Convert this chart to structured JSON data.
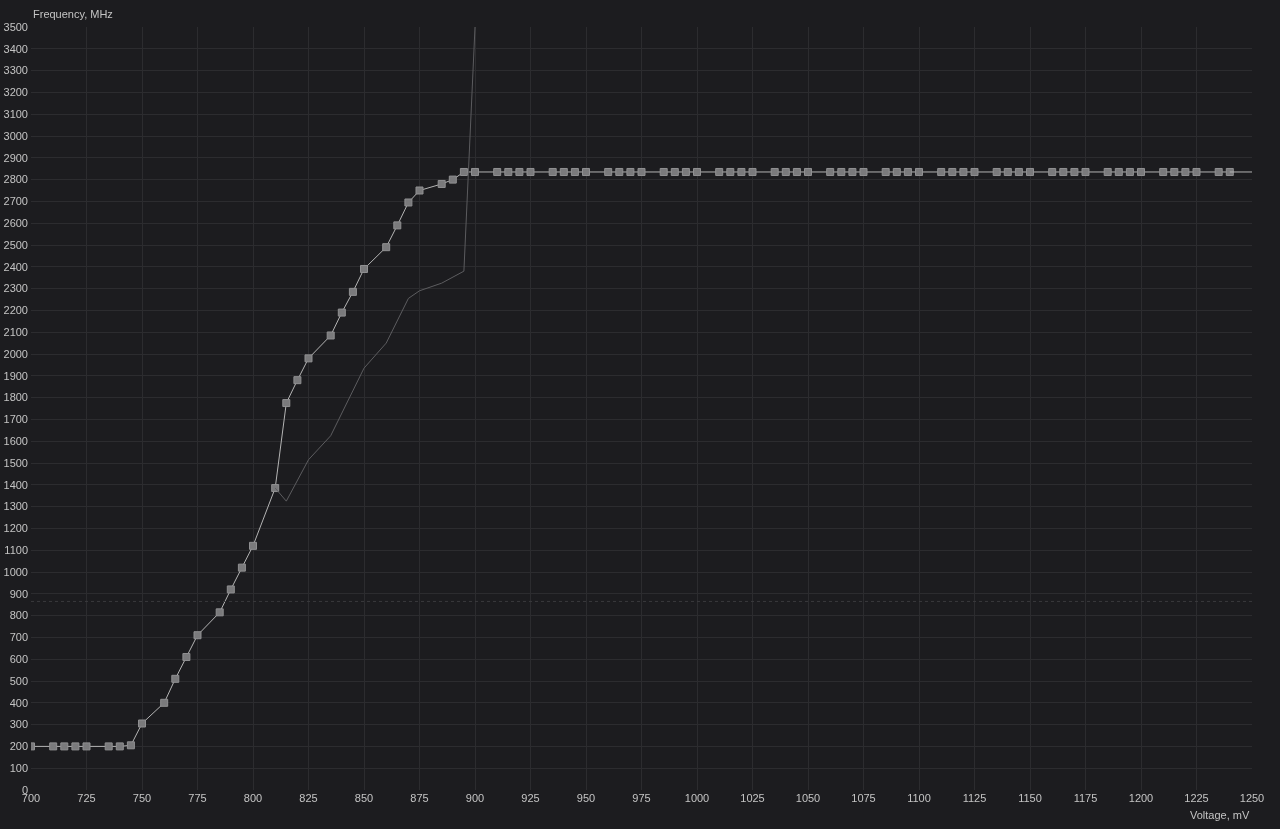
{
  "chart_data": {
    "type": "line",
    "xlabel": "Voltage, mV",
    "ylabel": "Frequency, MHz",
    "xlim": [
      700,
      1250
    ],
    "ylim": [
      0,
      3500
    ],
    "xticks": [
      700,
      725,
      750,
      775,
      800,
      825,
      850,
      875,
      900,
      925,
      950,
      975,
      1000,
      1025,
      1050,
      1075,
      1100,
      1125,
      1150,
      1175,
      1200,
      1225,
      1250
    ],
    "yticks": [
      0,
      100,
      200,
      300,
      400,
      500,
      600,
      700,
      800,
      900,
      1000,
      1100,
      1200,
      1300,
      1400,
      1500,
      1600,
      1700,
      1800,
      1900,
      2000,
      2100,
      2200,
      2300,
      2400,
      2500,
      2600,
      2700,
      2800,
      2900,
      3000,
      3100,
      3200,
      3300,
      3400,
      3500
    ],
    "grid": true,
    "ref_lines": [
      {
        "axis": "y",
        "value": 865,
        "color": "#3a3a3d",
        "line_style": "dotted"
      }
    ],
    "series": [
      {
        "color": "#b4b4b4",
        "marker": "square",
        "x": [
          700,
          710,
          715,
          720,
          725,
          735,
          740,
          745,
          750,
          760,
          765,
          770,
          775,
          785,
          790,
          795,
          800,
          810,
          815,
          820,
          825,
          835,
          840,
          845,
          850,
          860,
          865,
          870,
          875,
          885,
          890,
          895,
          900,
          910,
          915,
          920,
          925,
          935,
          940,
          945,
          950,
          960,
          965,
          970,
          975,
          985,
          990,
          995,
          1000,
          1010,
          1015,
          1020,
          1025,
          1035,
          1040,
          1045,
          1050,
          1060,
          1065,
          1070,
          1075,
          1085,
          1090,
          1095,
          1100,
          1110,
          1115,
          1120,
          1125,
          1135,
          1140,
          1145,
          1150,
          1160,
          1165,
          1170,
          1175,
          1185,
          1190,
          1195,
          1200,
          1210,
          1215,
          1220,
          1225,
          1235,
          1240
        ],
        "values": [
          200,
          200,
          200,
          200,
          200,
          200,
          200,
          205,
          305,
          400,
          510,
          610,
          710,
          815,
          920,
          1020,
          1120,
          1385,
          1775,
          1880,
          1980,
          2085,
          2190,
          2285,
          2390,
          2490,
          2590,
          2695,
          2750,
          2780,
          2800,
          2835,
          2835,
          2835,
          2835,
          2835,
          2835,
          2835,
          2835,
          2835,
          2835,
          2835,
          2835,
          2835,
          2835,
          2835,
          2835,
          2835,
          2835,
          2835,
          2835,
          2835,
          2835,
          2835,
          2835,
          2835,
          2835,
          2835,
          2835,
          2835,
          2835,
          2835,
          2835,
          2835,
          2835,
          2835,
          2835,
          2835,
          2835,
          2835,
          2835,
          2835,
          2835,
          2835,
          2835,
          2835,
          2835,
          2835,
          2835,
          2835,
          2835,
          2835,
          2835,
          2835,
          2835,
          2835,
          2835
        ]
      },
      {
        "color": "#b4b4b4",
        "marker": "none",
        "x": [
          1240,
          1250
        ],
        "values": [
          2835,
          2835
        ]
      },
      {
        "color": "#5c5c5f",
        "marker": "none",
        "x": [
          810,
          815,
          825,
          835,
          850,
          860,
          870,
          875,
          885,
          895,
          900
        ],
        "values": [
          1385,
          1325,
          1515,
          1625,
          1935,
          2050,
          2255,
          2290,
          2325,
          2380,
          3500
        ]
      }
    ]
  }
}
